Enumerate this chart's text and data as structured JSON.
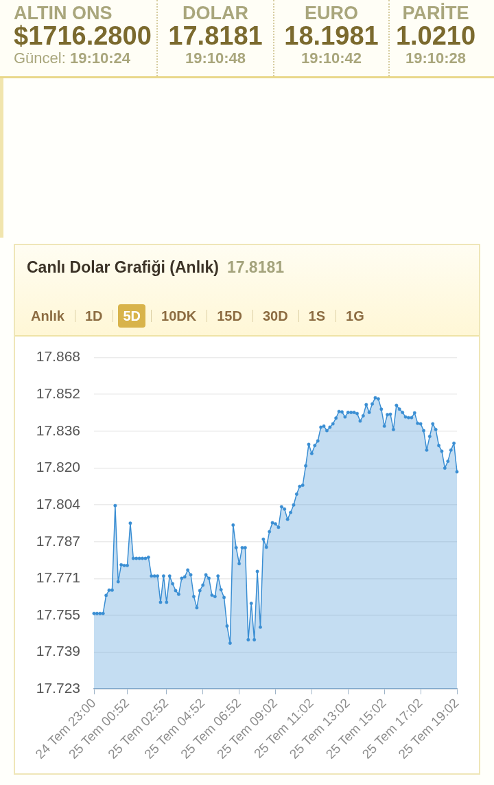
{
  "chart_data": [
    {
      "type": "other",
      "annotations": [
        "ALTIN ONS",
        "$1716.2800",
        "Güncel: 19:10:24",
        "DOLAR",
        "17.8181",
        "19:10:48",
        "EURO",
        "18.1981",
        "19:10:42",
        "PARİTE",
        "1.0210",
        "19:10:28"
      ]
    },
    {
      "type": "area",
      "title": "Canlı Dolar Grafiği (Anlık)",
      "subtitle": "17.8181",
      "annotations": [
        "Anlık",
        "1D",
        "5D",
        "10DK",
        "15D",
        "30D",
        "1S",
        "1G"
      ],
      "categories": [
        "24 Tem 23:00",
        null,
        null,
        null,
        null,
        null,
        null,
        null,
        null,
        null,
        null,
        "25 Tem 00:52",
        null,
        null,
        null,
        null,
        null,
        null,
        null,
        null,
        null,
        null,
        null,
        null,
        "25 Tem 02:52",
        null,
        null,
        null,
        null,
        null,
        null,
        null,
        null,
        null,
        null,
        null,
        "25 Tem 04:52",
        null,
        null,
        null,
        null,
        null,
        null,
        null,
        null,
        null,
        null,
        null,
        "25 Tem 06:52",
        null,
        null,
        null,
        null,
        null,
        null,
        null,
        null,
        null,
        null,
        null,
        "25 Tem 09:02",
        null,
        null,
        null,
        null,
        null,
        null,
        null,
        null,
        null,
        null,
        null,
        "25 Tem 11:02",
        null,
        null,
        null,
        null,
        null,
        null,
        null,
        null,
        null,
        null,
        null,
        "25 Tem 13:02",
        null,
        null,
        null,
        null,
        null,
        null,
        null,
        null,
        null,
        null,
        null,
        "25 Tem 15:02",
        null,
        null,
        null,
        null,
        null,
        null,
        null,
        null,
        null,
        null,
        null,
        "25 Tem 17:02",
        null,
        null,
        null,
        null,
        null,
        null,
        null,
        null,
        null,
        null,
        null,
        "25 Tem 19:02"
      ],
      "series": [
        {
          "color": "#3a8ed3",
          "values": [
            17.756,
            17.756,
            17.756,
            17.756,
            17.7639,
            17.7662,
            17.7662,
            17.8032,
            17.7699,
            17.7773,
            17.777,
            17.777,
            17.7955,
            17.7801,
            17.7801,
            17.7801,
            17.7801,
            17.7801,
            17.7806,
            17.7724,
            17.7724,
            17.7724,
            17.7609,
            17.7724,
            17.7609,
            17.7724,
            17.769,
            17.766,
            17.7644,
            17.7714,
            17.772,
            17.775,
            17.7729,
            17.7634,
            17.7585,
            17.766,
            17.7684,
            17.7729,
            17.7714,
            17.764,
            17.7634,
            17.7724,
            17.7664,
            17.763,
            17.7505,
            17.743,
            17.7947,
            17.7848,
            17.7778,
            17.7848,
            17.7848,
            17.7445,
            17.7604,
            17.7445,
            17.7744,
            17.75,
            17.7885,
            17.785,
            17.7918,
            17.7957,
            17.7952,
            17.7937,
            17.8027,
            17.8017,
            17.7972,
            17.8002,
            17.8035,
            17.8082,
            17.8116,
            17.8121,
            17.8206,
            17.83,
            17.826,
            17.8295,
            17.8315,
            17.8375,
            17.838,
            17.836,
            17.8375,
            17.839,
            17.8415,
            17.8444,
            17.8442,
            17.842,
            17.844,
            17.844,
            17.844,
            17.8435,
            17.8402,
            17.8425,
            17.8474,
            17.844,
            17.8477,
            17.8504,
            17.8499,
            17.8454,
            17.838,
            17.843,
            17.8432,
            17.8365,
            17.8471,
            17.8454,
            17.844,
            17.842,
            17.8417,
            17.8417,
            17.8438,
            17.8392,
            17.839,
            17.836,
            17.8275,
            17.8335,
            17.839,
            17.8365,
            17.8295,
            17.827,
            17.8196,
            17.8226,
            17.8275,
            17.8305,
            17.818
          ]
        }
      ],
      "ylim": [
        17.723,
        17.868
      ],
      "yticks": [
        17.723,
        {
          "value": 17.7391,
          "label": "17.739"
        },
        {
          "value": 17.7552,
          "label": "17.755"
        },
        {
          "value": 17.7713,
          "label": "17.771"
        },
        {
          "value": 17.7874,
          "label": "17.787"
        },
        {
          "value": 17.8036,
          "label": "17.804"
        },
        {
          "value": 17.8197,
          "label": "17.820"
        },
        {
          "value": 17.8358,
          "label": "17.836"
        },
        {
          "value": 17.8519,
          "label": "17.852"
        },
        17.868
      ],
      "grid": "y",
      "marker": "circle"
    }
  ]
}
